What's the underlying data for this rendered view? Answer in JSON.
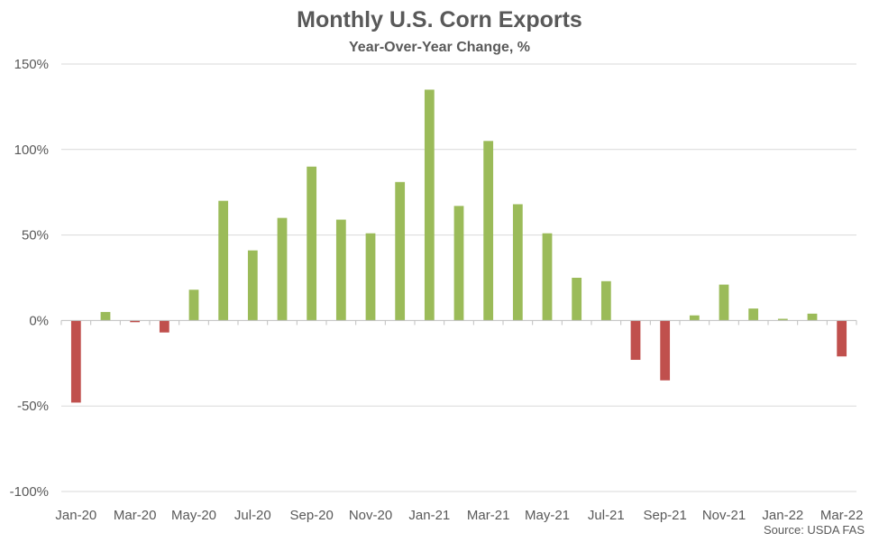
{
  "chart_data": {
    "type": "bar",
    "title": "Monthly U.S. Corn Exports",
    "subtitle": "Year-Over-Year Change, %",
    "source": "Source: USDA FAS",
    "categories": [
      "Jan-20",
      "Feb-20",
      "Mar-20",
      "Apr-20",
      "May-20",
      "Jun-20",
      "Jul-20",
      "Aug-20",
      "Sep-20",
      "Oct-20",
      "Nov-20",
      "Dec-20",
      "Jan-21",
      "Feb-21",
      "Mar-21",
      "Apr-21",
      "May-21",
      "Jun-21",
      "Jul-21",
      "Aug-21",
      "Sep-21",
      "Oct-21",
      "Nov-21",
      "Dec-21",
      "Jan-22",
      "Feb-22",
      "Mar-22"
    ],
    "x_tick_labels": [
      "Jan-20",
      "Mar-20",
      "May-20",
      "Jul-20",
      "Sep-20",
      "Nov-20",
      "Jan-21",
      "Mar-21",
      "May-21",
      "Jul-21",
      "Sep-21",
      "Nov-21",
      "Jan-22",
      "Mar-22"
    ],
    "values": [
      -48,
      5,
      -1,
      -7,
      18,
      70,
      41,
      60,
      90,
      59,
      51,
      81,
      135,
      67,
      105,
      68,
      51,
      25,
      23,
      -23,
      -35,
      3,
      21,
      7,
      1,
      4,
      -21
    ],
    "ylim": [
      -100,
      150
    ],
    "y_ticks": [
      -100,
      -50,
      0,
      50,
      100,
      150
    ],
    "y_tick_labels": [
      "-100%",
      "-50%",
      "0%",
      "50%",
      "100%",
      "150%"
    ],
    "grid": true,
    "colors": {
      "positive": "#9bbb59",
      "negative": "#c0504d",
      "grid": "#d9d9d9",
      "axis": "#bfbfbf"
    }
  }
}
